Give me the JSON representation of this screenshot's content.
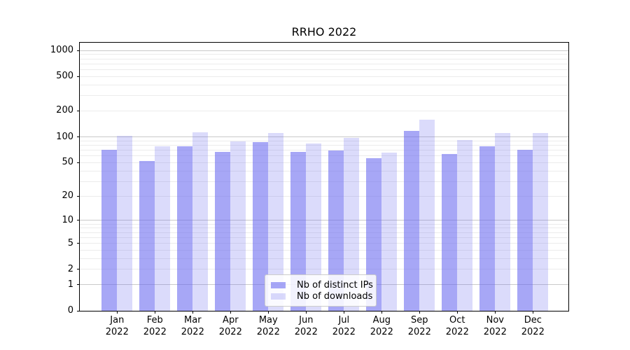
{
  "title": "RRHO 2022",
  "chart_data": {
    "type": "bar",
    "title": "RRHO 2022",
    "categories": [
      "Jan 2022",
      "Feb 2022",
      "Mar 2022",
      "Apr 2022",
      "May 2022",
      "Jun 2022",
      "Jul 2022",
      "Aug 2022",
      "Sep 2022",
      "Oct 2022",
      "Nov 2022",
      "Dec 2022"
    ],
    "series": [
      {
        "name": "Nb of distinct IPs",
        "color": "rgba(103,103,240,0.58)",
        "values": [
          71,
          52,
          78,
          67,
          87,
          67,
          69,
          56,
          118,
          63,
          77,
          70
        ]
      },
      {
        "name": "Nb of downloads",
        "color": "rgba(103,103,240,0.24)",
        "values": [
          102,
          77,
          112,
          89,
          111,
          83,
          97,
          65,
          158,
          92,
          111,
          111
        ]
      }
    ],
    "yscale": "symlog (ln(1+v))",
    "ylim": [
      0,
      1000
    ],
    "yticks": [
      0,
      1,
      2,
      5,
      10,
      20,
      50,
      100,
      200,
      500,
      1000
    ],
    "grid_major": [
      1,
      10,
      100,
      1000
    ],
    "grid_minor": [
      2,
      3,
      4,
      5,
      6,
      7,
      8,
      9,
      20,
      30,
      40,
      50,
      60,
      70,
      80,
      90,
      200,
      300,
      400,
      500,
      600,
      700,
      800,
      900
    ],
    "legend_position": "lower center",
    "xlabel": "",
    "ylabel": ""
  },
  "colors": {
    "major_grid": "#c9c9c9",
    "minor_grid": "#ececec",
    "axis": "#000000",
    "text": "#000000",
    "bar_dark": "rgba(103,103,240,0.58)",
    "bar_light": "rgba(103,103,240,0.24)"
  }
}
